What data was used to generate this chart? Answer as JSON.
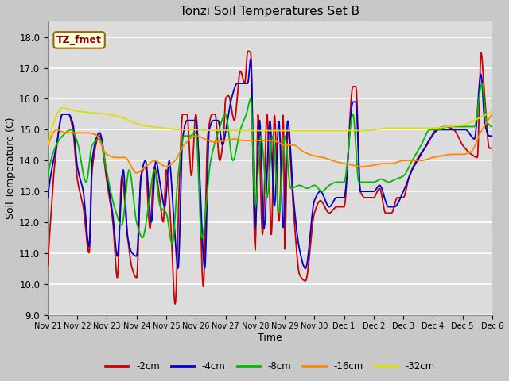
{
  "title": "Tonzi Soil Temperatures Set B",
  "xlabel": "Time",
  "ylabel": "Soil Temperature (C)",
  "ylim": [
    9.0,
    18.5
  ],
  "yticks": [
    9.0,
    10.0,
    11.0,
    12.0,
    13.0,
    14.0,
    15.0,
    16.0,
    17.0,
    18.0
  ],
  "legend_label": "TZ_fmet",
  "series_colors": {
    "-2cm": "#cc0000",
    "-4cm": "#0000cc",
    "-8cm": "#00bb00",
    "-16cm": "#ff8800",
    "-32cm": "#dddd00"
  },
  "x_tick_labels": [
    "Nov 21",
    "Nov 22",
    "Nov 23",
    "Nov 24",
    "Nov 25",
    "Nov 26",
    "Nov 27",
    "Nov 28",
    "Nov 29",
    "Nov 30",
    "Dec 1",
    "Dec 2",
    "Dec 3",
    "Dec 4",
    "Dec 5",
    "Dec 6"
  ],
  "kp2_x": [
    0.0,
    0.08,
    0.25,
    0.5,
    0.7,
    0.85,
    1.0,
    1.2,
    1.4,
    1.5,
    1.75,
    2.0,
    2.2,
    2.35,
    2.5,
    2.7,
    2.85,
    3.0,
    3.15,
    3.3,
    3.45,
    3.6,
    3.75,
    3.9,
    4.0,
    4.15,
    4.3,
    4.45,
    4.55,
    4.7,
    4.85,
    5.0,
    5.1,
    5.25,
    5.4,
    5.55,
    5.65,
    5.8,
    5.95,
    6.0,
    6.1,
    6.3,
    6.5,
    6.65,
    6.75,
    6.85,
    7.0,
    7.1,
    7.25,
    7.4,
    7.55,
    7.65,
    7.8,
    7.95,
    8.0,
    8.1,
    8.3,
    8.5,
    8.7,
    9.0,
    9.2,
    9.5,
    9.75,
    10.0,
    10.3,
    10.4,
    10.55,
    10.7,
    11.0,
    11.2,
    11.4,
    11.6,
    11.8,
    12.0,
    12.2,
    12.5,
    12.8,
    13.1,
    13.4,
    13.7,
    14.0,
    14.3,
    14.5,
    14.62,
    14.75,
    14.9,
    15.0
  ],
  "kp2_y": [
    10.6,
    11.8,
    14.0,
    15.5,
    15.5,
    15.0,
    13.4,
    12.5,
    11.0,
    13.7,
    14.8,
    13.3,
    12.0,
    10.2,
    13.5,
    11.5,
    10.5,
    10.2,
    13.5,
    13.8,
    11.8,
    13.8,
    13.0,
    12.0,
    13.7,
    12.0,
    9.35,
    13.5,
    15.5,
    15.5,
    13.5,
    15.5,
    14.0,
    9.9,
    14.8,
    15.5,
    15.5,
    14.0,
    15.0,
    16.0,
    16.1,
    15.3,
    16.9,
    16.5,
    17.55,
    17.5,
    11.1,
    15.5,
    11.6,
    15.5,
    11.6,
    15.5,
    12.0,
    15.5,
    11.1,
    15.0,
    12.3,
    10.3,
    10.1,
    12.3,
    12.7,
    12.3,
    12.5,
    12.5,
    16.4,
    16.4,
    13.0,
    12.8,
    12.8,
    13.1,
    12.3,
    12.3,
    12.8,
    12.8,
    13.5,
    14.1,
    14.5,
    15.0,
    15.1,
    15.0,
    14.5,
    14.2,
    14.1,
    17.5,
    16.0,
    14.4,
    14.4
  ],
  "kp4_x": [
    0.0,
    0.1,
    0.3,
    0.5,
    0.7,
    0.85,
    1.0,
    1.2,
    1.4,
    1.5,
    1.75,
    2.0,
    2.2,
    2.35,
    2.55,
    2.7,
    2.85,
    3.0,
    3.15,
    3.3,
    3.5,
    3.65,
    3.8,
    3.95,
    4.1,
    4.25,
    4.4,
    4.55,
    4.7,
    4.85,
    5.0,
    5.1,
    5.3,
    5.45,
    5.6,
    5.75,
    5.9,
    6.05,
    6.2,
    6.4,
    6.6,
    6.75,
    6.85,
    7.0,
    7.15,
    7.3,
    7.5,
    7.65,
    7.8,
    7.95,
    8.1,
    8.3,
    8.5,
    8.7,
    9.0,
    9.2,
    9.5,
    9.75,
    10.0,
    10.3,
    10.4,
    10.55,
    10.75,
    11.0,
    11.2,
    11.5,
    11.7,
    12.0,
    12.3,
    12.6,
    12.9,
    13.2,
    13.5,
    13.8,
    14.1,
    14.4,
    14.62,
    14.75,
    14.9,
    15.0
  ],
  "kp4_y": [
    12.8,
    13.5,
    14.5,
    15.5,
    15.5,
    15.2,
    13.8,
    13.0,
    11.2,
    14.0,
    14.9,
    13.5,
    12.2,
    10.9,
    13.7,
    11.5,
    11.0,
    10.9,
    13.5,
    14.0,
    12.0,
    14.0,
    13.2,
    12.5,
    14.0,
    12.2,
    10.5,
    14.7,
    15.3,
    15.3,
    15.3,
    14.0,
    10.5,
    15.0,
    15.3,
    15.3,
    14.5,
    15.2,
    16.0,
    16.5,
    16.5,
    16.5,
    17.3,
    11.8,
    15.3,
    11.8,
    15.3,
    12.5,
    15.3,
    11.8,
    15.3,
    12.7,
    11.1,
    10.5,
    12.7,
    13.0,
    12.5,
    12.8,
    12.8,
    15.9,
    15.9,
    13.0,
    13.0,
    13.0,
    13.2,
    12.5,
    12.5,
    13.0,
    13.7,
    14.2,
    14.7,
    15.0,
    15.0,
    15.0,
    15.0,
    14.7,
    16.8,
    15.2,
    14.8,
    14.8
  ],
  "kp8_x": [
    0.0,
    0.2,
    0.5,
    0.8,
    1.0,
    1.3,
    1.5,
    1.75,
    2.0,
    2.25,
    2.5,
    2.75,
    3.0,
    3.2,
    3.4,
    3.6,
    3.8,
    4.0,
    4.2,
    4.4,
    4.6,
    4.8,
    5.0,
    5.2,
    5.5,
    5.75,
    6.0,
    6.25,
    6.5,
    6.7,
    6.85,
    7.0,
    7.2,
    7.4,
    7.6,
    7.8,
    8.0,
    8.2,
    8.5,
    8.75,
    9.0,
    9.25,
    9.5,
    9.75,
    10.0,
    10.3,
    10.5,
    10.75,
    11.0,
    11.25,
    11.5,
    11.75,
    12.0,
    12.3,
    12.6,
    12.9,
    13.2,
    13.5,
    13.8,
    14.1,
    14.4,
    14.65,
    14.8,
    15.0
  ],
  "kp8_y": [
    13.5,
    14.3,
    14.8,
    15.0,
    14.6,
    13.3,
    14.5,
    14.7,
    13.6,
    12.5,
    11.9,
    13.7,
    12.0,
    11.5,
    12.5,
    13.7,
    12.5,
    12.3,
    11.3,
    13.5,
    14.8,
    14.8,
    14.9,
    11.5,
    14.0,
    14.9,
    15.5,
    14.0,
    15.0,
    15.5,
    16.0,
    12.5,
    14.8,
    12.8,
    14.8,
    12.3,
    14.8,
    13.1,
    13.2,
    13.1,
    13.2,
    13.0,
    13.2,
    13.3,
    13.3,
    15.5,
    13.3,
    13.3,
    13.3,
    13.4,
    13.3,
    13.4,
    13.5,
    14.0,
    14.5,
    15.0,
    15.0,
    15.1,
    15.1,
    15.1,
    15.1,
    16.5,
    15.3,
    15.1
  ],
  "kp16_x": [
    0.0,
    0.3,
    0.6,
    1.0,
    1.3,
    1.6,
    2.0,
    2.3,
    2.6,
    3.0,
    3.3,
    3.6,
    4.0,
    4.3,
    4.6,
    5.0,
    5.3,
    5.6,
    6.0,
    6.3,
    6.6,
    7.0,
    7.3,
    7.6,
    8.0,
    8.3,
    8.6,
    9.0,
    9.3,
    9.6,
    10.0,
    10.3,
    10.6,
    11.0,
    11.3,
    11.6,
    12.0,
    12.3,
    12.6,
    13.0,
    13.3,
    13.6,
    14.0,
    14.3,
    14.6,
    15.0
  ],
  "kp16_y": [
    14.45,
    15.0,
    14.9,
    14.9,
    14.9,
    14.85,
    14.2,
    14.1,
    14.1,
    13.6,
    13.8,
    14.0,
    13.8,
    14.0,
    14.5,
    14.8,
    14.7,
    14.6,
    14.65,
    14.7,
    14.65,
    14.65,
    14.65,
    14.65,
    14.5,
    14.5,
    14.3,
    14.15,
    14.1,
    14.0,
    13.9,
    13.85,
    13.8,
    13.85,
    13.9,
    13.9,
    14.0,
    14.0,
    14.0,
    14.1,
    14.15,
    14.2,
    14.2,
    14.3,
    14.9,
    15.5
  ],
  "kp32_x": [
    0.0,
    0.5,
    1.0,
    1.5,
    2.0,
    2.5,
    3.0,
    3.5,
    4.0,
    4.5,
    5.0,
    5.5,
    6.0,
    6.5,
    7.0,
    7.5,
    8.0,
    8.5,
    9.0,
    9.5,
    10.0,
    10.5,
    11.0,
    11.5,
    12.0,
    12.5,
    13.0,
    13.5,
    14.0,
    14.5,
    15.0
  ],
  "kp32_y": [
    14.55,
    15.7,
    15.6,
    15.55,
    15.5,
    15.4,
    15.2,
    15.1,
    15.05,
    15.0,
    15.0,
    14.98,
    14.98,
    14.98,
    14.97,
    14.97,
    14.97,
    14.97,
    14.97,
    14.97,
    14.97,
    14.97,
    15.0,
    15.05,
    15.05,
    15.05,
    15.05,
    15.1,
    15.15,
    15.35,
    15.6
  ]
}
